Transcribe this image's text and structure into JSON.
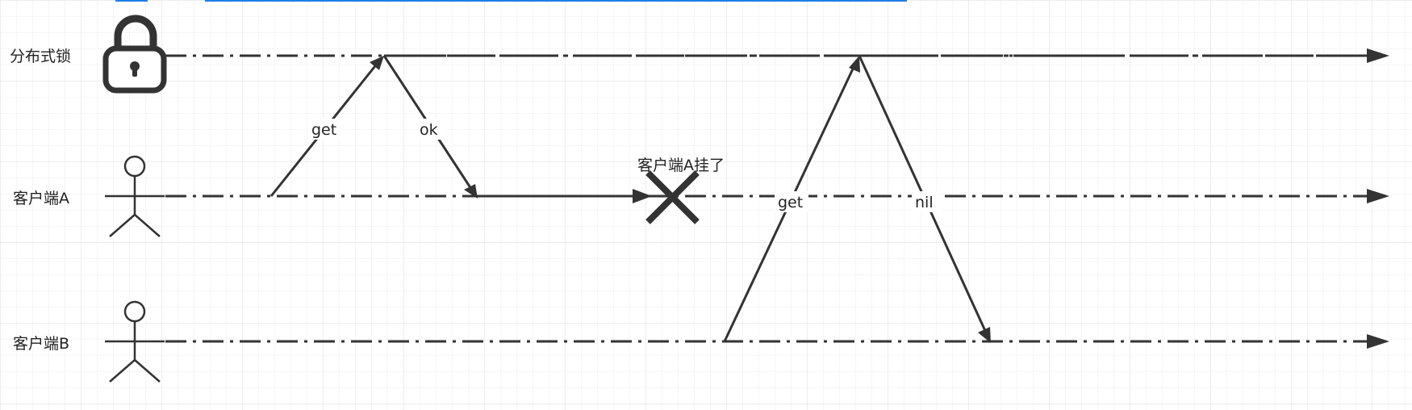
{
  "rows": {
    "lock": {
      "label": "分布式锁",
      "icon": "padlock-icon"
    },
    "client_a": {
      "label": "客户端A",
      "icon": "stick-figure-icon"
    },
    "client_b": {
      "label": "客户端B",
      "icon": "stick-figure-icon"
    }
  },
  "messages": {
    "a_get": "get",
    "a_ok": "ok",
    "b_get": "get",
    "b_nil": "nil"
  },
  "events": {
    "client_a_crash": "客户端A挂了",
    "crash_icon": "cross-icon"
  },
  "colors": {
    "line": "#333333",
    "grid": "#e6e6e6",
    "topbar": "#1e7ee8"
  }
}
